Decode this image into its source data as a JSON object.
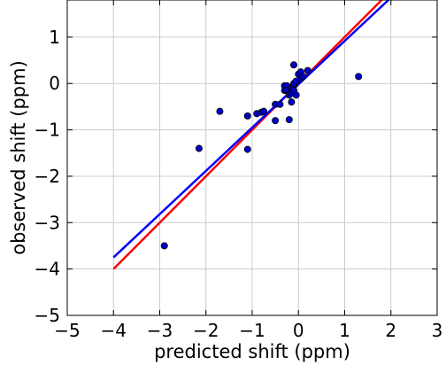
{
  "chart_data": {
    "type": "scatter",
    "title": "",
    "xlabel": "predicted shift (ppm)",
    "ylabel": "observed shift (ppm)",
    "xlim": [
      -5,
      3
    ],
    "ylim": [
      -5,
      1.8
    ],
    "xticks": [
      -5,
      -4,
      -3,
      -2,
      -1,
      0,
      1,
      2,
      3
    ],
    "yticks": [
      -5,
      -4,
      -3,
      -2,
      -1,
      0,
      1
    ],
    "grid": true,
    "colors": {
      "points": "#0000cc",
      "point_edge": "#000000",
      "line_identity": "#ff0000",
      "line_fit": "#0000ff",
      "grid": "#cccccc"
    },
    "series": [
      {
        "kind": "points",
        "x": [
          -2.9,
          -2.15,
          -1.7,
          -1.1,
          -1.1,
          -0.9,
          -0.8,
          -0.75,
          -0.5,
          -0.5,
          -0.4,
          -0.3,
          -0.3,
          -0.25,
          -0.25,
          -0.2,
          -0.2,
          -0.2,
          -0.15,
          -0.15,
          -0.15,
          -0.1,
          -0.1,
          -0.1,
          -0.1,
          -0.05,
          -0.05,
          0.0,
          0.05,
          0.05,
          0.1,
          0.2,
          1.3
        ],
        "y": [
          -3.5,
          -1.4,
          -0.6,
          -1.42,
          -0.7,
          -0.65,
          -0.62,
          -0.6,
          -0.8,
          -0.45,
          -0.45,
          -0.15,
          -0.05,
          -0.05,
          -0.15,
          -0.2,
          -0.25,
          -0.78,
          -0.4,
          -0.1,
          -0.2,
          -0.05,
          0.0,
          -0.15,
          0.4,
          0.05,
          -0.25,
          0.2,
          0.1,
          0.25,
          0.15,
          0.28,
          0.15
        ]
      },
      {
        "kind": "line",
        "x": [
          -4,
          1.85
        ],
        "y": [
          -4,
          1.85
        ]
      },
      {
        "kind": "line",
        "x": [
          -4,
          2.0
        ],
        "y": [
          -3.75,
          1.85
        ]
      }
    ]
  }
}
